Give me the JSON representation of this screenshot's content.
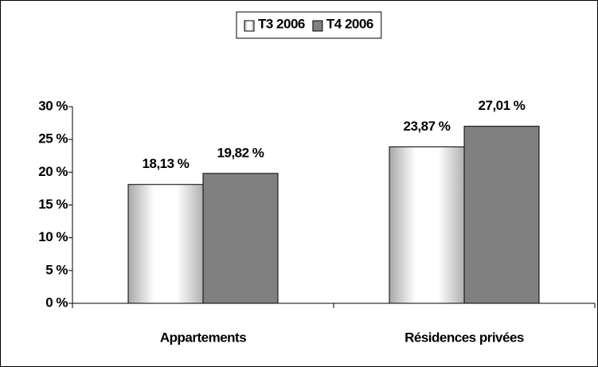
{
  "chart_data": {
    "type": "bar",
    "categories": [
      "Appartements",
      "Résidences privées"
    ],
    "series": [
      {
        "name": "T3 2006",
        "color": "#e8e8e8",
        "values": [
          18.13,
          23.87
        ],
        "value_labels": [
          "18,13 %",
          "23,87 %"
        ]
      },
      {
        "name": "T4 2006",
        "color": "#808080",
        "values": [
          19.82,
          27.01
        ],
        "value_labels": [
          "19,82 %",
          "27,01 %"
        ]
      }
    ],
    "ylim": [
      0,
      30
    ],
    "yticks": [
      {
        "value": 0,
        "label": "0 %"
      },
      {
        "value": 5,
        "label": "5 %"
      },
      {
        "value": 10,
        "label": "10 %"
      },
      {
        "value": 15,
        "label": "15 %"
      },
      {
        "value": 20,
        "label": "20 %"
      },
      {
        "value": 25,
        "label": "25 %"
      },
      {
        "value": 30,
        "label": "30 %"
      }
    ],
    "legend": "top"
  }
}
